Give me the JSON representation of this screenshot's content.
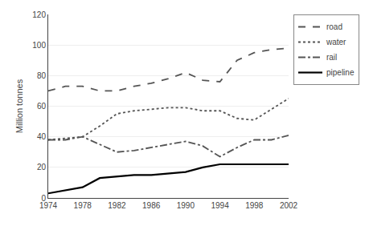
{
  "chart_data": {
    "type": "line",
    "ylabel": "Million tonnes",
    "x": [
      1974,
      1976,
      1978,
      1980,
      1982,
      1984,
      1986,
      1988,
      1990,
      1992,
      1994,
      1996,
      1998,
      2000,
      2002
    ],
    "series": [
      {
        "name": "road",
        "color": "#555555",
        "line_style": "dashed",
        "values": [
          70,
          73,
          73,
          70,
          70,
          73,
          75,
          78,
          82,
          77,
          76,
          90,
          95,
          97,
          98
        ]
      },
      {
        "name": "water",
        "color": "#555555",
        "line_style": "dotted",
        "values": [
          38,
          39,
          40,
          47,
          55,
          57,
          58,
          59,
          59,
          57,
          57,
          52,
          51,
          58,
          65
        ]
      },
      {
        "name": "rail",
        "color": "#555555",
        "line_style": "dashdot",
        "values": [
          38,
          38,
          40,
          35,
          30,
          31,
          33,
          35,
          37,
          34,
          27,
          33,
          38,
          38,
          41
        ]
      },
      {
        "name": "pipeline",
        "color": "#000000",
        "line_style": "solid",
        "values": [
          3,
          5,
          7,
          13,
          14,
          15,
          15,
          16,
          17,
          20,
          22,
          22,
          22,
          22,
          22
        ]
      }
    ],
    "xlim": [
      1974,
      2002
    ],
    "xticks": [
      1974,
      1978,
      1982,
      1986,
      1990,
      1994,
      1998,
      2002
    ],
    "ylim": [
      0,
      120
    ],
    "yticks": [
      0,
      20,
      40,
      60,
      80,
      100,
      120
    ],
    "grid": "y",
    "legend": "upper right"
  }
}
